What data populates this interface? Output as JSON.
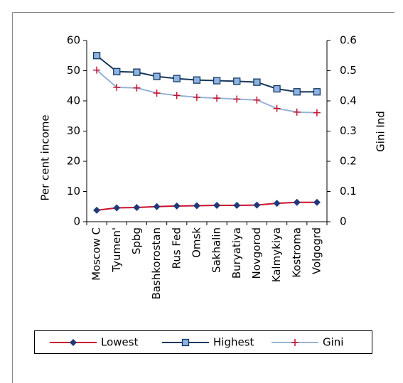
{
  "chart_data": {
    "type": "line",
    "categories": [
      "Moscow C",
      "Tyumen'",
      "Spbg",
      "Bashkorostan",
      "Rus Fed",
      "Omsk",
      "Sakhalin",
      "Buryatiya",
      "Novgorod",
      "Kalmykiya",
      "Kostroma",
      "Volgogrd"
    ],
    "ylabel": "Per cent income",
    "y2label": "Gini Ind",
    "ylim": [
      0,
      60
    ],
    "yticks": [
      0,
      10,
      20,
      30,
      40,
      50,
      60
    ],
    "y2lim": [
      0,
      0.6
    ],
    "y2ticks": [
      0,
      0.1,
      0.2,
      0.3,
      0.4,
      0.5,
      0.6
    ],
    "legend": "bottom",
    "series": [
      {
        "name": "Lowest",
        "color": "#c8102e",
        "marker": "diamond",
        "marker_color": "#1f3a7a",
        "values": [
          3.8,
          4.6,
          4.7,
          5.0,
          5.2,
          5.3,
          5.4,
          5.4,
          5.5,
          6.1,
          6.4,
          6.4
        ]
      },
      {
        "name": "Highest",
        "color": "#17375e",
        "marker": "square",
        "marker_color": "#8db4e2",
        "values": [
          55,
          49.7,
          49.5,
          48.1,
          47.4,
          46.9,
          46.7,
          46.5,
          46.2,
          44.0,
          43.0,
          43.0
        ]
      },
      {
        "name": "Gini",
        "color": "#95b3d7",
        "marker": "plus",
        "marker_color": "#c8102e",
        "axis": "y2",
        "values": [
          0.502,
          0.445,
          0.443,
          0.426,
          0.418,
          0.412,
          0.409,
          0.406,
          0.403,
          0.375,
          0.363,
          0.361
        ]
      }
    ]
  }
}
